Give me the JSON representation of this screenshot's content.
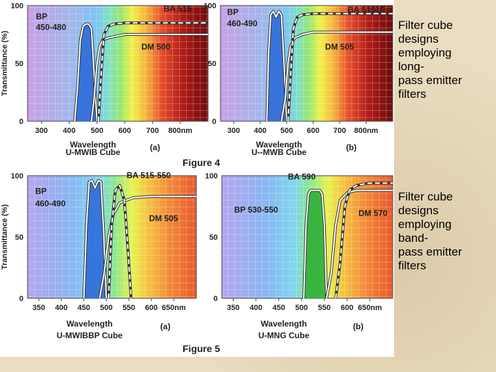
{
  "side_text": {
    "longpass": "Filter cube\ndesigns\nemploying\nlong-\npass emitter\nfilters",
    "bandpass": "Filter cube\ndesigns\nemploying\nband-\npass emitter\nfilters"
  },
  "figure4": {
    "caption": "Figure 4"
  },
  "figure5": {
    "caption": "Figure 5"
  },
  "chart_data": [
    {
      "type": "line",
      "panel": "(a)",
      "cube": "U-MWIB Cube",
      "xlabel": "Wavelength",
      "ylabel": "Transmittance (%)",
      "xlim": [
        250,
        900
      ],
      "ylim": [
        0,
        100
      ],
      "xticks": [
        300,
        400,
        500,
        600,
        700,
        800
      ],
      "xtick_labels": [
        "300",
        "400",
        "500",
        "600",
        "700",
        "800nm"
      ],
      "yticks": [
        0,
        50,
        100
      ],
      "annotations": [
        {
          "text": "BP",
          "x": 280,
          "y": 88
        },
        {
          "text": "450-480",
          "x": 280,
          "y": 79
        },
        {
          "text": "BA 515",
          "x": 740,
          "y": 95
        },
        {
          "text": "DM 500",
          "x": 660,
          "y": 62
        }
      ],
      "series": [
        {
          "role": "BP",
          "style": "solid-blue-fill",
          "x": [
            420,
            430,
            440,
            450,
            460,
            470,
            480,
            490,
            500
          ],
          "y": [
            0,
            30,
            70,
            82,
            84,
            84,
            80,
            40,
            0
          ]
        },
        {
          "role": "DM",
          "style": "solid",
          "x": [
            480,
            490,
            500,
            510,
            520,
            540,
            600,
            900
          ],
          "y": [
            0,
            20,
            50,
            65,
            70,
            72,
            75,
            75
          ]
        },
        {
          "role": "BA",
          "style": "dashed",
          "x": [
            505,
            515,
            525,
            540,
            560,
            600,
            900
          ],
          "y": [
            0,
            40,
            75,
            82,
            84,
            85,
            85
          ]
        }
      ]
    },
    {
      "type": "line",
      "panel": "(b)",
      "cube": "U--MWB Cube",
      "xlabel": "Wavelength",
      "ylabel": "",
      "xlim": [
        250,
        900
      ],
      "ylim": [
        0,
        100
      ],
      "xticks": [
        300,
        400,
        500,
        600,
        700,
        800
      ],
      "xtick_labels": [
        "300",
        "400",
        "500",
        "600",
        "700",
        "800nm"
      ],
      "yticks": [
        0,
        50,
        100
      ],
      "annotations": [
        {
          "text": "BP",
          "x": 275,
          "y": 92
        },
        {
          "text": "460-490",
          "x": 275,
          "y": 82
        },
        {
          "text": "BA 5151F",
          "x": 730,
          "y": 94
        },
        {
          "text": "DM 505",
          "x": 645,
          "y": 62
        }
      ],
      "series": [
        {
          "role": "BP",
          "style": "solid-blue-fill",
          "x": [
            425,
            432,
            440,
            450,
            460,
            470,
            480,
            490,
            500
          ],
          "y": [
            0,
            60,
            92,
            95,
            90,
            95,
            92,
            50,
            0
          ]
        },
        {
          "role": "DM",
          "style": "solid",
          "x": [
            480,
            495,
            505,
            515,
            530,
            560,
            600,
            900
          ],
          "y": [
            0,
            20,
            50,
            65,
            72,
            75,
            77,
            77
          ]
        },
        {
          "role": "BA",
          "style": "dashed",
          "x": [
            505,
            515,
            525,
            540,
            560,
            600,
            900
          ],
          "y": [
            0,
            40,
            80,
            90,
            92,
            93,
            93
          ]
        }
      ]
    },
    {
      "type": "line",
      "panel": "(a)",
      "cube": "U-MWIBBP Cube",
      "xlabel": "Wavelength",
      "ylabel": "Transmittance (%)",
      "xlim": [
        325,
        700
      ],
      "ylim": [
        0,
        100
      ],
      "xticks": [
        350,
        400,
        450,
        500,
        550,
        600,
        650
      ],
      "xtick_labels": [
        "350",
        "400",
        "450",
        "500",
        "550",
        "600",
        "650nm"
      ],
      "yticks": [
        0,
        50,
        100
      ],
      "annotations": [
        {
          "text": "BP",
          "x": 342,
          "y": 85
        },
        {
          "text": "460-490",
          "x": 342,
          "y": 75
        },
        {
          "text": "BA 515-550",
          "x": 545,
          "y": 98
        },
        {
          "text": "DM 505",
          "x": 595,
          "y": 63
        }
      ],
      "series": [
        {
          "role": "BP",
          "style": "solid-blue-fill",
          "x": [
            450,
            456,
            462,
            468,
            475,
            482,
            488,
            494,
            500
          ],
          "y": [
            0,
            60,
            95,
            96,
            90,
            96,
            95,
            55,
            0
          ]
        },
        {
          "role": "DM",
          "style": "solid",
          "x": [
            485,
            495,
            505,
            515,
            530,
            560,
            600,
            700
          ],
          "y": [
            0,
            20,
            50,
            68,
            78,
            82,
            83,
            83
          ]
        },
        {
          "role": "BA",
          "style": "dashed",
          "x": [
            505,
            512,
            520,
            530,
            540,
            548,
            555
          ],
          "y": [
            0,
            60,
            88,
            92,
            80,
            40,
            0
          ]
        }
      ]
    },
    {
      "type": "line",
      "panel": "(b)",
      "cube": "U-MNG Cube",
      "xlabel": "Wavelength",
      "ylabel": "",
      "xlim": [
        325,
        700
      ],
      "ylim": [
        0,
        100
      ],
      "xticks": [
        350,
        400,
        450,
        500,
        550,
        600,
        650
      ],
      "xtick_labels": [
        "350",
        "400",
        "450",
        "500",
        "550",
        "600",
        "650nm"
      ],
      "yticks": [
        0,
        50,
        100
      ],
      "annotations": [
        {
          "text": "BA 590",
          "x": 470,
          "y": 97
        },
        {
          "text": "BP 530-550",
          "x": 352,
          "y": 70
        },
        {
          "text": "DM 570",
          "x": 625,
          "y": 67
        }
      ],
      "series": [
        {
          "role": "BP",
          "style": "solid-green-fill",
          "x": [
            505,
            510,
            515,
            520,
            530,
            540,
            545,
            550,
            555
          ],
          "y": [
            0,
            60,
            85,
            88,
            88,
            88,
            85,
            60,
            0
          ]
        },
        {
          "role": "DM",
          "style": "solid",
          "x": [
            555,
            565,
            575,
            585,
            600,
            620,
            700
          ],
          "y": [
            0,
            20,
            60,
            80,
            86,
            88,
            88
          ]
        },
        {
          "role": "BA",
          "style": "dashed",
          "x": [
            575,
            585,
            595,
            605,
            620,
            650,
            700
          ],
          "y": [
            0,
            30,
            75,
            88,
            92,
            94,
            94
          ]
        }
      ]
    }
  ]
}
